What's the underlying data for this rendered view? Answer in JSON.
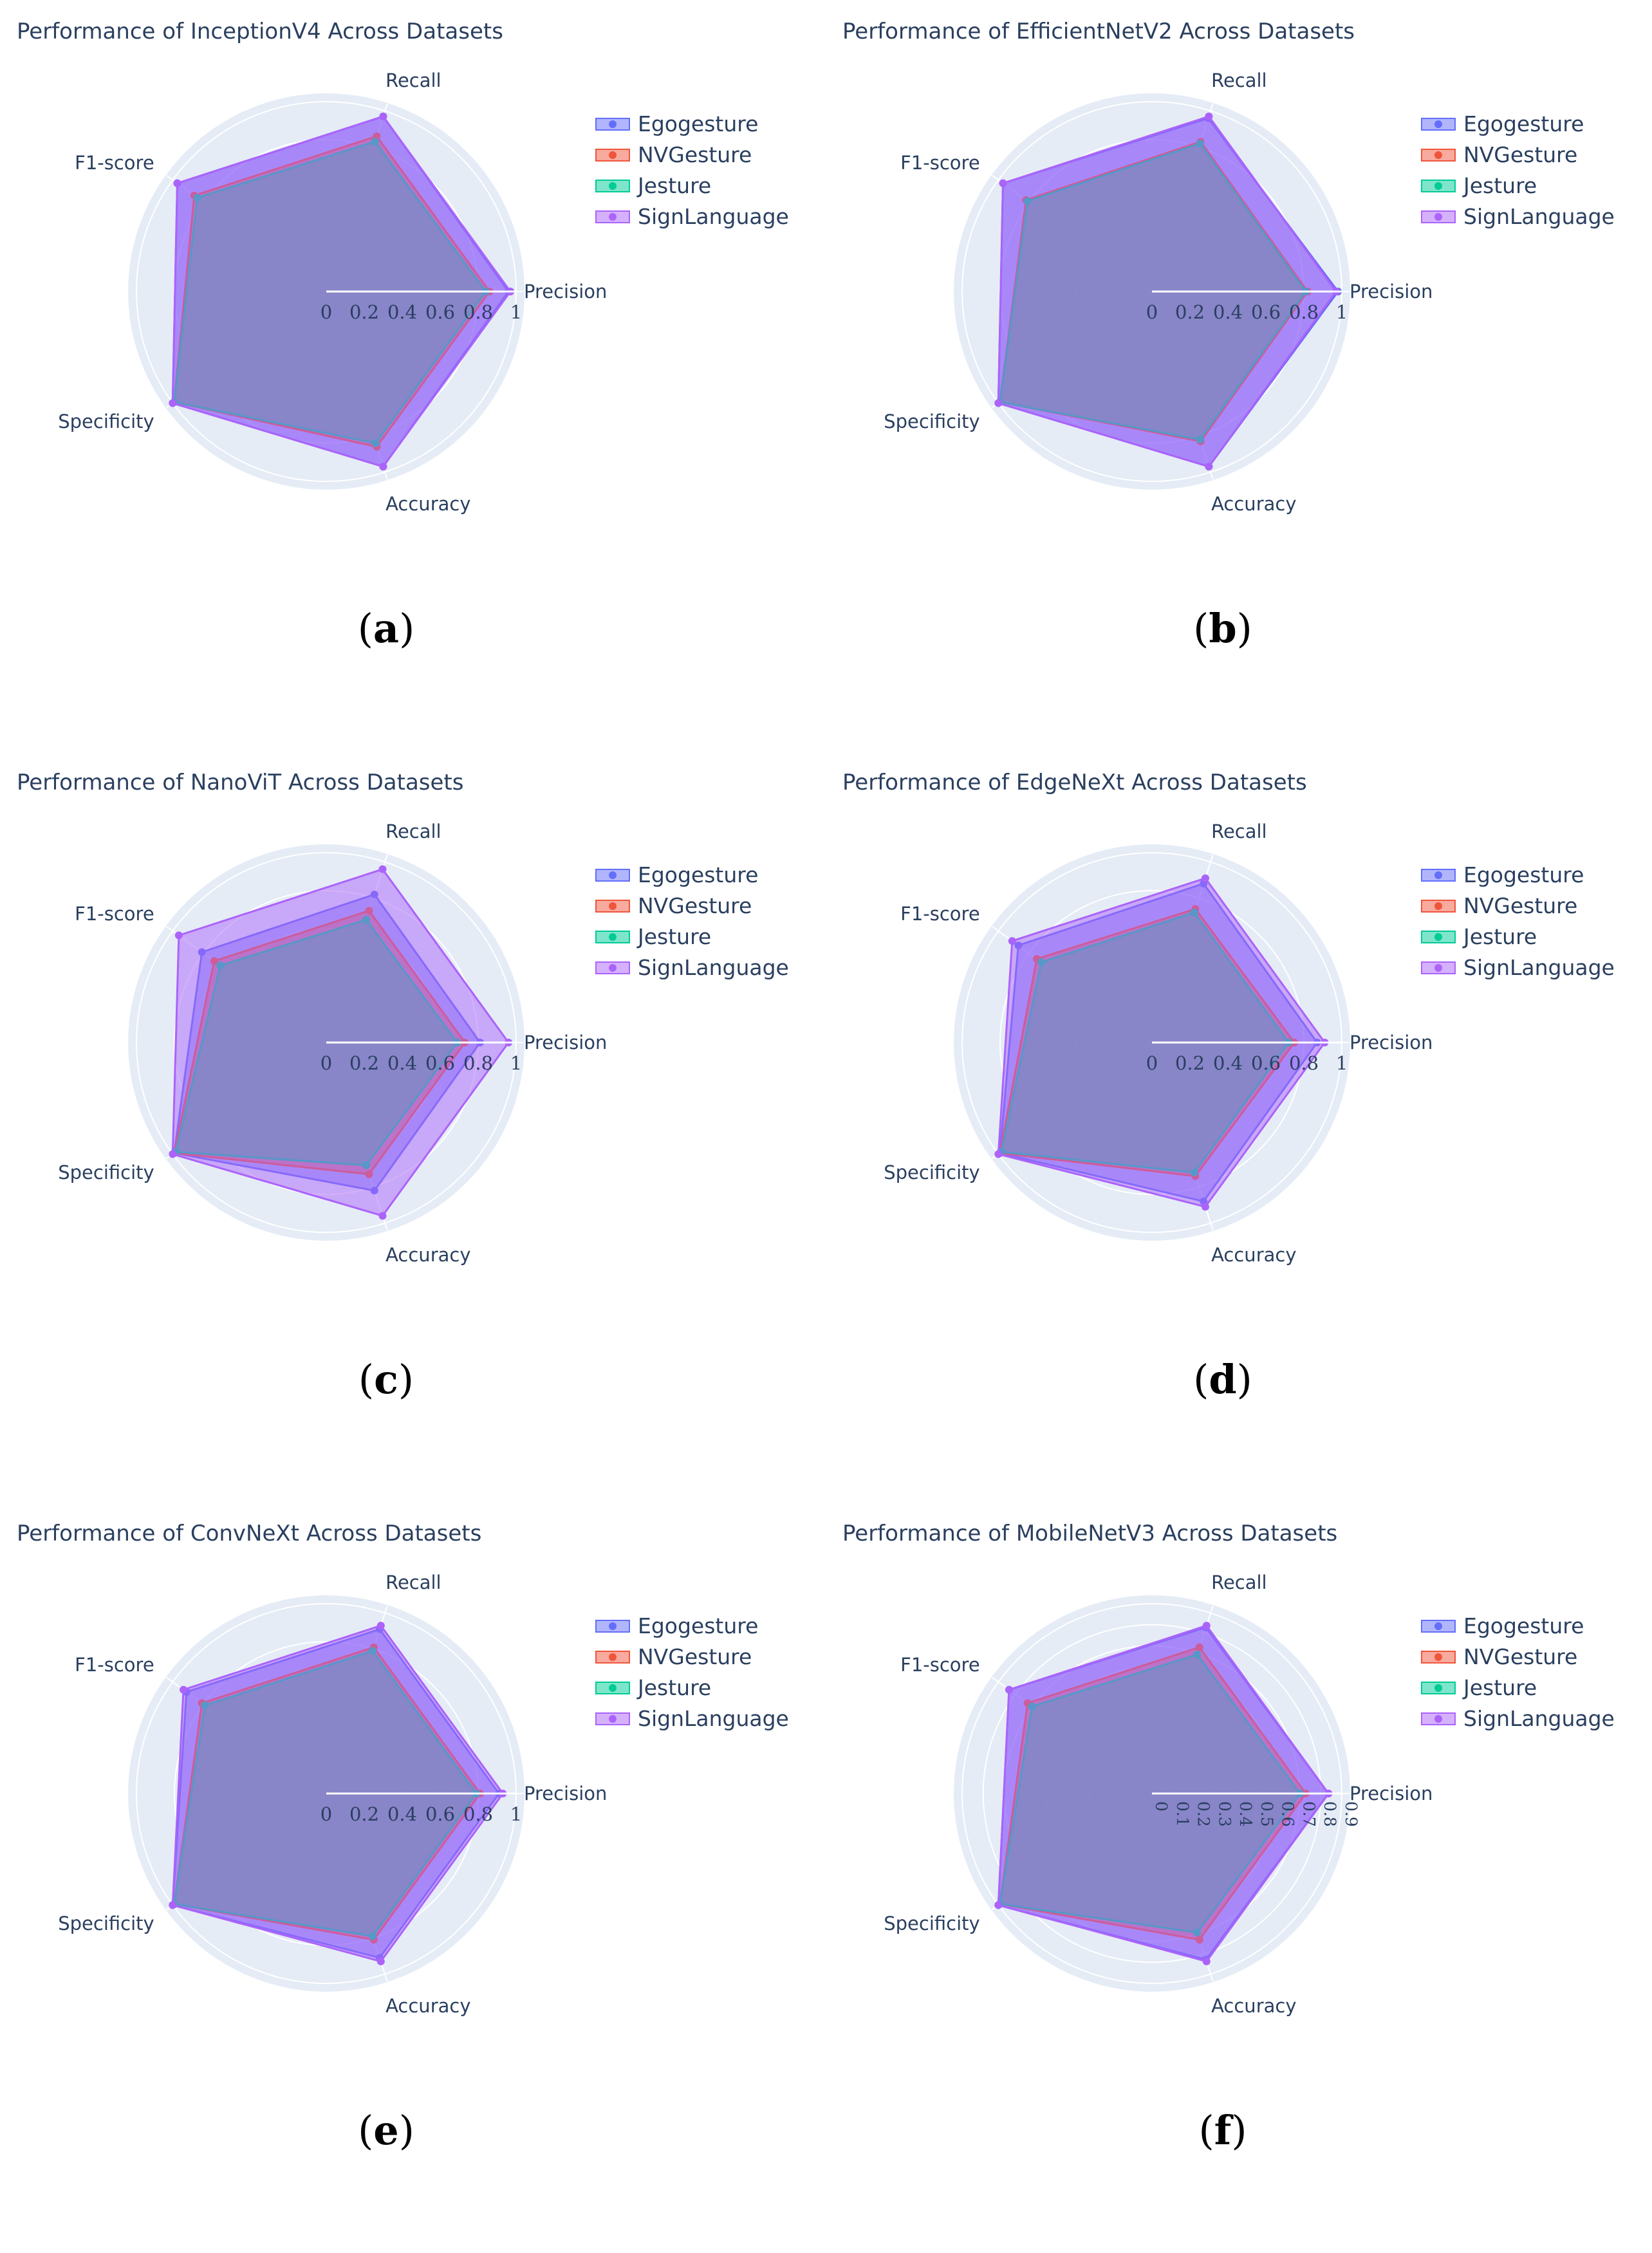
{
  "colors": {
    "Egogesture": "#636efa",
    "NVGesture": "#ef553b",
    "Jesture": "#00cc96",
    "SignLanguage": "#ab63fa",
    "polar_bg": "#e5ecf6",
    "text": "#2a3f5f"
  },
  "chart_data": [
    {
      "type": "radar",
      "title": "Performance of InceptionV4 Across Datasets",
      "panel_label": "a",
      "axes": [
        "Precision",
        "Recall",
        "F1-score",
        "Specificity",
        "Accuracy"
      ],
      "radial_range": [
        0,
        1
      ],
      "radial_ticks": [
        "0",
        "0.2",
        "0.4",
        "0.6",
        "0.8",
        "1"
      ],
      "legend_position": "top-right",
      "series": [
        {
          "name": "Egogesture",
          "values": [
            0.96,
            0.97,
            0.97,
            1.0,
            0.97
          ]
        },
        {
          "name": "NVGesture",
          "values": [
            0.86,
            0.86,
            0.86,
            0.99,
            0.86
          ]
        },
        {
          "name": "Jesture",
          "values": [
            0.84,
            0.83,
            0.84,
            0.99,
            0.84
          ]
        },
        {
          "name": "SignLanguage",
          "values": [
            0.97,
            0.97,
            0.97,
            1.0,
            0.97
          ]
        }
      ]
    },
    {
      "type": "radar",
      "title": "Performance of EfficientNetV2 Across Datasets",
      "panel_label": "b",
      "axes": [
        "Precision",
        "Recall",
        "F1-score",
        "Specificity",
        "Accuracy"
      ],
      "radial_range": [
        0,
        1
      ],
      "radial_ticks": [
        "0",
        "0.2",
        "0.4",
        "0.6",
        "0.8",
        "1"
      ],
      "legend_position": "top-right",
      "series": [
        {
          "name": "Egogesture",
          "values": [
            0.98,
            0.96,
            0.97,
            1.0,
            0.97
          ]
        },
        {
          "name": "NVGesture",
          "values": [
            0.82,
            0.83,
            0.82,
            0.99,
            0.83
          ]
        },
        {
          "name": "Jesture",
          "values": [
            0.81,
            0.82,
            0.81,
            0.99,
            0.82
          ]
        },
        {
          "name": "SignLanguage",
          "values": [
            0.97,
            0.97,
            0.97,
            1.0,
            0.97
          ]
        }
      ]
    },
    {
      "type": "radar",
      "title": "Performance of NanoViT Across Datasets",
      "panel_label": "c",
      "axes": [
        "Precision",
        "Recall",
        "F1-score",
        "Specificity",
        "Accuracy"
      ],
      "radial_range": [
        0,
        1
      ],
      "radial_ticks": [
        "0",
        "0.2",
        "0.4",
        "0.6",
        "0.8",
        "1"
      ],
      "legend_position": "top-right",
      "series": [
        {
          "name": "Egogesture",
          "values": [
            0.81,
            0.82,
            0.81,
            0.99,
            0.82
          ]
        },
        {
          "name": "NVGesture",
          "values": [
            0.73,
            0.73,
            0.73,
            0.99,
            0.73
          ]
        },
        {
          "name": "Jesture",
          "values": [
            0.69,
            0.68,
            0.69,
            0.98,
            0.68
          ]
        },
        {
          "name": "SignLanguage",
          "values": [
            0.96,
            0.96,
            0.96,
            1.0,
            0.96
          ]
        }
      ]
    },
    {
      "type": "radar",
      "title": "Performance of EdgeNeXt Across Datasets",
      "panel_label": "d",
      "axes": [
        "Precision",
        "Recall",
        "F1-score",
        "Specificity",
        "Accuracy"
      ],
      "radial_range": [
        0,
        1
      ],
      "radial_ticks": [
        "0",
        "0.2",
        "0.4",
        "0.6",
        "0.8",
        "1"
      ],
      "legend_position": "top-right",
      "series": [
        {
          "name": "Egogesture",
          "values": [
            0.87,
            0.88,
            0.87,
            0.99,
            0.88
          ]
        },
        {
          "name": "NVGesture",
          "values": [
            0.75,
            0.74,
            0.75,
            0.99,
            0.74
          ]
        },
        {
          "name": "Jesture",
          "values": [
            0.72,
            0.72,
            0.72,
            0.98,
            0.72
          ]
        },
        {
          "name": "SignLanguage",
          "values": [
            0.91,
            0.91,
            0.91,
            1.0,
            0.91
          ]
        }
      ]
    },
    {
      "type": "radar",
      "title": "Performance of ConvNeXt Across Datasets",
      "panel_label": "e",
      "axes": [
        "Precision",
        "Recall",
        "F1-score",
        "Specificity",
        "Accuracy"
      ],
      "radial_range": [
        0,
        1
      ],
      "radial_ticks": [
        "0",
        "0.2",
        "0.4",
        "0.6",
        "0.8",
        "1"
      ],
      "legend_position": "top-right",
      "series": [
        {
          "name": "Egogesture",
          "values": [
            0.91,
            0.91,
            0.91,
            1.0,
            0.91
          ]
        },
        {
          "name": "NVGesture",
          "values": [
            0.81,
            0.81,
            0.81,
            0.99,
            0.81
          ]
        },
        {
          "name": "Jesture",
          "values": [
            0.79,
            0.79,
            0.79,
            0.99,
            0.79
          ]
        },
        {
          "name": "SignLanguage",
          "values": [
            0.93,
            0.93,
            0.93,
            1.0,
            0.93
          ]
        }
      ]
    },
    {
      "type": "radar",
      "title": "Performance of MobileNetV3 Across Datasets",
      "panel_label": "f",
      "axes": [
        "Precision",
        "Recall",
        "F1-score",
        "Specificity",
        "Accuracy"
      ],
      "radial_range": [
        0,
        1
      ],
      "radial_ticks": [
        "0",
        "0.1",
        "0.2",
        "0.3",
        "0.4",
        "0.5",
        "0.6",
        "0.7",
        "0.8",
        "0.9"
      ],
      "legend_position": "top-right",
      "series": [
        {
          "name": "Egogesture",
          "values": [
            0.93,
            0.92,
            0.93,
            1.0,
            0.92
          ]
        },
        {
          "name": "NVGesture",
          "values": [
            0.81,
            0.81,
            0.81,
            0.99,
            0.81
          ]
        },
        {
          "name": "Jesture",
          "values": [
            0.78,
            0.77,
            0.78,
            0.99,
            0.77
          ]
        },
        {
          "name": "SignLanguage",
          "values": [
            0.93,
            0.93,
            0.93,
            1.0,
            0.93
          ]
        }
      ]
    }
  ]
}
